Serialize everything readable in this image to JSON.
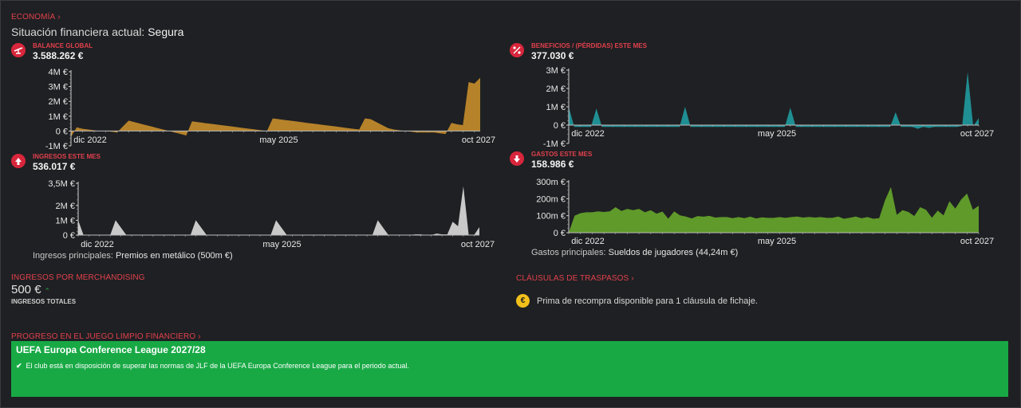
{
  "economy": {
    "title": "ECONOMÍA",
    "status_prefix": "Situación financiera actual:",
    "status_value": "Segura"
  },
  "metrics": {
    "balance": {
      "label": "BALANCE GLOBAL",
      "value": "3.588.262 €",
      "icon": "balance-scale-icon"
    },
    "profit": {
      "label": "BENEFICIOS / (PÉRDIDAS) ESTE MES",
      "value": "377.030 €",
      "icon": "percent-icon"
    },
    "income": {
      "label": "INGRESOS ESTE MES",
      "value": "536.017 €",
      "icon": "arrow-up-icon"
    },
    "expenses": {
      "label": "GASTOS ESTE MES",
      "value": "158.986 €",
      "icon": "arrow-down-icon"
    }
  },
  "notes": {
    "income_prefix": "Ingresos principales:",
    "income_value": "Premios en metálico (500m €)",
    "expense_prefix": "Gastos principales:",
    "expense_value": "Sueldos de jugadores (44,24m €)"
  },
  "merch": {
    "title": "INGRESOS POR MERCHANDISING",
    "value": "500 €",
    "trend_icon": "trend-up-icon",
    "sub": "INGRESOS TOTALES"
  },
  "clauses": {
    "title": "CLÁUSULAS DE TRASPASOS",
    "text": "Prima de recompra disponible para 1 cláusula de fichaje.",
    "icon": "euro-coin-icon"
  },
  "ffp": {
    "title": "PROGRESO EN EL JUEGO LIMPIO FINANCIERO",
    "competition": "UEFA Europa Conference League 2027/28",
    "desc": "El club está en disposición de superar las normas de JLF de la UEFA Europa Conference League para el periodo actual."
  },
  "colors": {
    "accent": "#e0404c",
    "balance_fill": "#b6822a",
    "profit_fill": "#1f8f93",
    "income_fill": "#c9c9c9",
    "expense_fill": "#5f9a2a",
    "ffp_green": "#18a945"
  },
  "chart_data": [
    {
      "id": "balance",
      "type": "area",
      "title": "BALANCE GLOBAL",
      "unit": "M €",
      "x_ticks": [
        "dic 2022",
        "may 2025",
        "oct 2027"
      ],
      "ytick_labels": [
        "-1M €",
        "0 €",
        "1M €",
        "2M €",
        "3M €",
        "4M €"
      ],
      "ylim": [
        -1,
        4
      ],
      "values": [
        -0.4,
        0.25,
        0.15,
        0.1,
        0.05,
        0,
        0,
        -0.05,
        -0.1,
        0.3,
        0.7,
        0.6,
        0.5,
        0.4,
        0.3,
        0.2,
        0.1,
        0,
        -0.1,
        -0.2,
        -0.3,
        0.65,
        0.6,
        0.55,
        0.5,
        0.45,
        0.4,
        0.35,
        0.3,
        0.25,
        0.2,
        0.15,
        0.1,
        0.05,
        0,
        0.85,
        0.8,
        0.75,
        0.7,
        0.65,
        0.6,
        0.55,
        0.5,
        0.45,
        0.4,
        0.35,
        0.3,
        0.25,
        0.2,
        0.15,
        0.1,
        0.85,
        0.8,
        0.6,
        0.4,
        0.2,
        0.1,
        0.05,
        0,
        -0.05,
        -0.1,
        -0.1,
        -0.1,
        -0.1,
        -0.15,
        -0.2,
        0.55,
        0.45,
        0.4,
        3.3,
        3.2,
        3.59
      ]
    },
    {
      "id": "profit",
      "type": "area",
      "title": "BENEFICIOS / (PÉRDIDAS) ESTE MES",
      "unit": "M €",
      "x_ticks": [
        "dic 2022",
        "may 2025",
        "oct 2027"
      ],
      "ytick_labels": [
        "-1M €",
        "0 €",
        "1M €",
        "2M €",
        "3M €"
      ],
      "ylim": [
        -1,
        3
      ],
      "values": [
        1.0,
        -0.1,
        -0.1,
        -0.1,
        -0.1,
        0.9,
        -0.1,
        -0.1,
        -0.1,
        -0.1,
        -0.1,
        -0.1,
        -0.1,
        -0.1,
        -0.1,
        -0.1,
        -0.1,
        -0.1,
        -0.1,
        -0.1,
        -0.1,
        1.0,
        -0.1,
        -0.1,
        -0.1,
        -0.1,
        -0.1,
        -0.1,
        -0.1,
        -0.1,
        -0.1,
        -0.1,
        -0.1,
        -0.1,
        -0.1,
        -0.1,
        -0.1,
        -0.1,
        -0.1,
        -0.1,
        0.95,
        -0.1,
        -0.1,
        -0.1,
        -0.1,
        -0.1,
        -0.1,
        -0.1,
        -0.1,
        -0.1,
        -0.1,
        -0.1,
        -0.1,
        -0.1,
        -0.1,
        -0.1,
        -0.1,
        -0.1,
        -0.1,
        0.7,
        -0.1,
        -0.1,
        -0.1,
        -0.2,
        -0.1,
        -0.15,
        -0.1,
        -0.1,
        -0.1,
        -0.1,
        -0.1,
        -0.05,
        2.9,
        -0.05,
        0.38
      ]
    },
    {
      "id": "income",
      "type": "area",
      "title": "INGRESOS ESTE MES",
      "unit": "M €",
      "x_ticks": [
        "dic 2022",
        "may 2025",
        "oct 2027"
      ],
      "ytick_labels": [
        "0 €",
        "1M €",
        "2M €",
        "3,5M €"
      ],
      "ylim": [
        0,
        3.5
      ],
      "values": [
        1.0,
        0,
        0,
        0,
        0,
        0,
        0,
        1.0,
        0.5,
        0,
        0,
        0,
        0,
        0,
        0,
        0,
        0,
        0,
        0,
        0,
        0,
        0,
        1.0,
        0.5,
        0,
        0,
        0,
        0,
        0,
        0,
        0,
        0,
        0,
        0,
        0,
        0,
        0,
        1.0,
        0.5,
        0,
        0,
        0,
        0,
        0,
        0,
        0,
        0,
        0,
        0,
        0,
        0,
        0,
        0,
        0,
        0,
        0,
        1.0,
        0.5,
        0,
        0,
        0,
        0,
        0,
        0.05,
        0.05,
        0,
        0,
        0.1,
        0.05,
        0.05,
        0.9,
        0.6,
        3.3,
        0,
        0,
        0.54
      ]
    },
    {
      "id": "expenses",
      "type": "area",
      "title": "GASTOS ESTE MES",
      "unit": "m €",
      "x_ticks": [
        "dic 2022",
        "may 2025",
        "oct 2027"
      ],
      "ytick_labels": [
        "0 €",
        "100m €",
        "200m €",
        "300m €"
      ],
      "ylim": [
        0,
        300
      ],
      "values": [
        0,
        100,
        115,
        120,
        120,
        125,
        122,
        125,
        150,
        128,
        140,
        132,
        140,
        120,
        132,
        112,
        124,
        82,
        125,
        102,
        95,
        84,
        98,
        94,
        99,
        89,
        92,
        92,
        86,
        92,
        86,
        94,
        84,
        90,
        87,
        87,
        92,
        87,
        92,
        95,
        89,
        93,
        89,
        92,
        87,
        87,
        95,
        82,
        88,
        95,
        85,
        92,
        82,
        86,
        190,
        268,
        105,
        132,
        122,
        98,
        150,
        135,
        88,
        130,
        102,
        185,
        142,
        195,
        230,
        135,
        159
      ]
    }
  ]
}
